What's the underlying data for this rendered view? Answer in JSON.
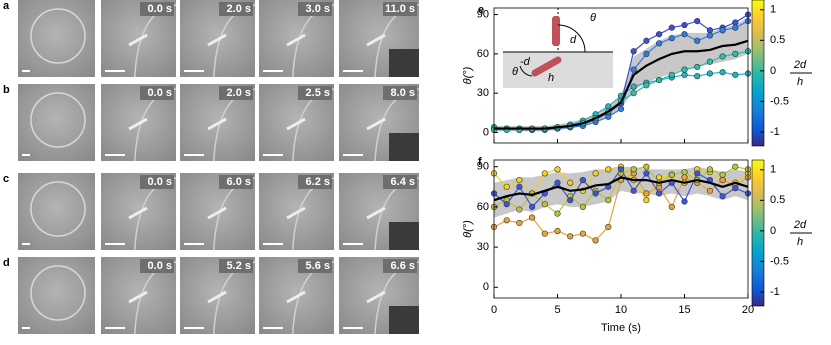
{
  "panels": [
    {
      "label": "a",
      "times": [
        "0.0 s",
        "2.0 s",
        "3.0 s",
        "11.0 s"
      ]
    },
    {
      "label": "b",
      "times": [
        "0.0 s",
        "2.0 s",
        "2.5 s",
        "8.0 s"
      ]
    },
    {
      "label": "c",
      "times": [
        "0.0 s",
        "6.0 s",
        "6.2 s",
        "6.4 s"
      ]
    },
    {
      "label": "d",
      "times": [
        "0.0 s",
        "5.2 s",
        "5.6 s",
        "6.6 s"
      ]
    }
  ],
  "chart_data": [
    {
      "type": "line",
      "label": "e",
      "ylabel": "θ(°)",
      "x": [
        0,
        1,
        2,
        3,
        4,
        5,
        6,
        7,
        8,
        9,
        10,
        11,
        12,
        13,
        14,
        15,
        16,
        17,
        18,
        19,
        20
      ],
      "xlim": [
        0,
        20
      ],
      "xticks": [
        0,
        5,
        10,
        15,
        20
      ],
      "show_xtick_labels": false,
      "ylim": [
        -8,
        95
      ],
      "yticks": [
        0,
        30,
        60,
        90
      ],
      "series": [
        {
          "color": "#3a4fd8",
          "values": [
            4,
            3,
            2,
            2,
            3,
            3,
            4,
            6,
            10,
            15,
            22,
            62,
            70,
            75,
            80,
            82,
            85,
            78,
            80,
            84,
            90
          ]
        },
        {
          "color": "#2e7ce8",
          "values": [
            3,
            3,
            3,
            2,
            2,
            3,
            4,
            5,
            8,
            12,
            18,
            48,
            60,
            68,
            72,
            75,
            70,
            74,
            78,
            80,
            85
          ]
        },
        {
          "color": "#22b3c4",
          "values": [
            4,
            3,
            3,
            3,
            3,
            4,
            6,
            9,
            14,
            20,
            28,
            35,
            38,
            40,
            42,
            44,
            43,
            45,
            46,
            44,
            45
          ]
        },
        {
          "color": "#2bc0a8",
          "values": [
            2,
            2,
            2,
            3,
            3,
            4,
            5,
            7,
            11,
            16,
            24,
            30,
            36,
            40,
            44,
            48,
            50,
            54,
            58,
            60,
            62
          ]
        }
      ],
      "mean": {
        "color": "#000000",
        "values": [
          3,
          3,
          3,
          3,
          3,
          4,
          5,
          7,
          11,
          16,
          23,
          44,
          51,
          56,
          60,
          62,
          62,
          63,
          66,
          67,
          70
        ]
      },
      "band": {
        "color": "#c8c8c8",
        "lower": [
          1,
          1,
          1,
          1,
          1,
          2,
          3,
          5,
          8,
          12,
          18,
          32,
          38,
          42,
          45,
          48,
          50,
          52,
          54,
          56,
          60
        ],
        "upper": [
          5,
          5,
          5,
          5,
          5,
          6,
          8,
          10,
          14,
          20,
          28,
          58,
          64,
          70,
          74,
          76,
          76,
          76,
          80,
          82,
          88
        ]
      },
      "inset_labels": [
        "θ",
        "d",
        "-d",
        "θ",
        "h"
      ],
      "colorbar": {
        "clim": [
          -1.23,
          1.16
        ],
        "ticks": [
          -1,
          -0.5,
          0,
          0.5,
          1
        ],
        "numerator": "2d",
        "denominator": "h",
        "colormap": [
          "#352a87",
          "#0f5cdd",
          "#1481d6",
          "#06a4ca",
          "#2eb7a4",
          "#87bf77",
          "#d1bb59",
          "#fec832",
          "#f9fb0e"
        ]
      }
    },
    {
      "type": "line",
      "label": "f",
      "ylabel": "θ(°)",
      "xlabel": "Time (s)",
      "x": [
        0,
        1,
        2,
        3,
        4,
        5,
        6,
        7,
        8,
        9,
        10,
        11,
        12,
        13,
        14,
        15,
        16,
        17,
        18,
        19,
        20
      ],
      "xlim": [
        0,
        20
      ],
      "xticks": [
        0,
        5,
        10,
        15,
        20
      ],
      "show_xtick_labels": true,
      "ylim": [
        -8,
        95
      ],
      "yticks": [
        0,
        30,
        60,
        90
      ],
      "series": [
        {
          "color": "#f2d027",
          "values": [
            85,
            75,
            80,
            70,
            85,
            88,
            78,
            72,
            85,
            88,
            90,
            80,
            65,
            82,
            84,
            78,
            88,
            86,
            80,
            78,
            85
          ]
        },
        {
          "color": "#e8a33a",
          "values": [
            45,
            50,
            48,
            52,
            40,
            42,
            38,
            40,
            35,
            45,
            80,
            85,
            70,
            75,
            60,
            82,
            78,
            72,
            80,
            76,
            82
          ]
        },
        {
          "color": "#b9c43a",
          "values": [
            60,
            65,
            58,
            70,
            62,
            55,
            68,
            60,
            72,
            65,
            85,
            88,
            90,
            78,
            84,
            86,
            80,
            88,
            84,
            90,
            88
          ]
        },
        {
          "color": "#3f55d9",
          "values": [
            70,
            62,
            75,
            60,
            70,
            78,
            65,
            80,
            70,
            75,
            88,
            72,
            85,
            70,
            78,
            64,
            85,
            80,
            68,
            74,
            70
          ]
        }
      ],
      "mean": {
        "color": "#000000",
        "values": [
          65,
          68,
          70,
          69,
          72,
          75,
          72,
          73,
          76,
          77,
          82,
          80,
          80,
          78,
          80,
          78,
          80,
          78,
          75,
          78,
          75
        ]
      },
      "band": {
        "color": "#c8c8c8",
        "lower": [
          52,
          55,
          58,
          56,
          60,
          62,
          60,
          60,
          62,
          64,
          72,
          70,
          70,
          68,
          70,
          68,
          70,
          68,
          65,
          68,
          65
        ],
        "upper": [
          78,
          80,
          82,
          82,
          84,
          86,
          85,
          86,
          88,
          88,
          90,
          90,
          88,
          88,
          88,
          88,
          90,
          88,
          86,
          88,
          86
        ]
      },
      "colorbar": {
        "clim": [
          -1.23,
          1.16
        ],
        "ticks": [
          -1,
          -0.5,
          0,
          0.5,
          1
        ],
        "numerator": "2d",
        "denominator": "h",
        "colormap": [
          "#352a87",
          "#0f5cdd",
          "#1481d6",
          "#06a4ca",
          "#2eb7a4",
          "#87bf77",
          "#d1bb59",
          "#fec832",
          "#f9fb0e"
        ]
      }
    }
  ]
}
